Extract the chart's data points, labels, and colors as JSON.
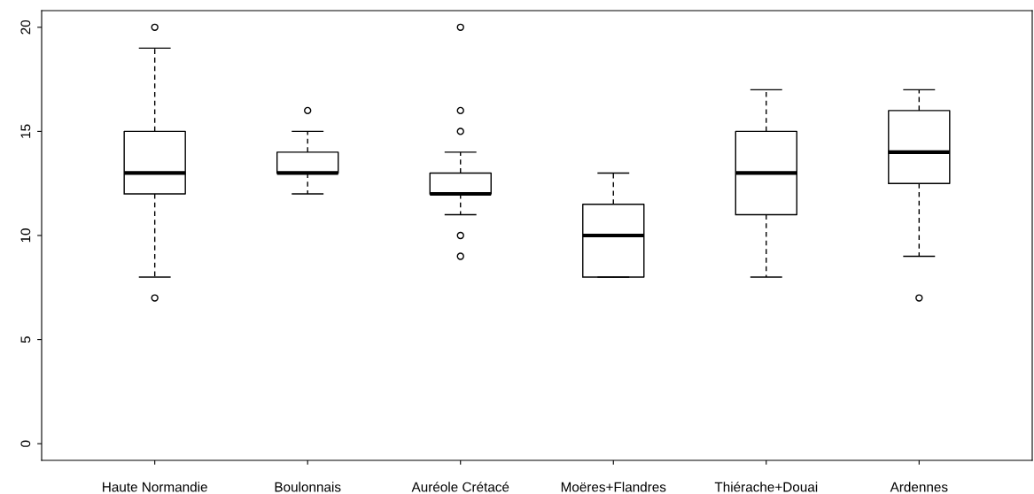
{
  "chart_data": {
    "type": "box",
    "categories": [
      "Haute Normandie",
      "Boulonnais",
      "Auréole Crétacé",
      "Moëres+Flandres",
      "Thiérache+Douai",
      "Ardennes"
    ],
    "boxes": [
      {
        "low": 8,
        "q1": 12,
        "median": 13,
        "q3": 15,
        "high": 19,
        "outliers": [
          7,
          20
        ]
      },
      {
        "low": 12,
        "q1": 13,
        "median": 13,
        "q3": 14,
        "high": 15,
        "outliers": [
          16
        ]
      },
      {
        "low": 11,
        "q1": 12,
        "median": 12,
        "q3": 13,
        "high": 14,
        "outliers": [
          9,
          10,
          15,
          16,
          20
        ]
      },
      {
        "low": 8,
        "q1": 8,
        "median": 10,
        "q3": 11.5,
        "high": 13
      },
      {
        "low": 8,
        "q1": 11,
        "median": 13,
        "q3": 15,
        "high": 17
      },
      {
        "low": 9,
        "q1": 12.5,
        "median": 14,
        "q3": 16,
        "high": 17,
        "outliers": [
          7
        ]
      }
    ],
    "color": "#000000",
    "ylim": [
      -0.8,
      20.8
    ],
    "yticks": [
      0,
      5,
      10,
      15,
      20
    ],
    "grid": false
  }
}
